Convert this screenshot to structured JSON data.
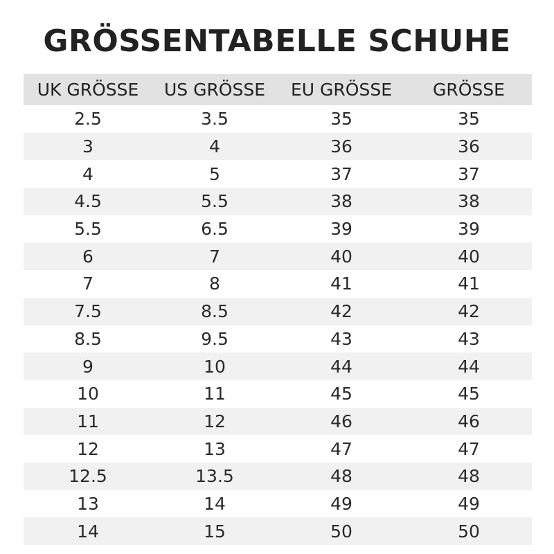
{
  "title": "GRÖSSENTABELLE SCHUHE",
  "table": {
    "headers": [
      "UK GRÖSSE",
      "US GRÖSSE",
      "EU GRÖSSE",
      "GRÖSSE"
    ],
    "rows": [
      [
        "2.5",
        "3.5",
        "35",
        "35"
      ],
      [
        "3",
        "4",
        "36",
        "36"
      ],
      [
        "4",
        "5",
        "37",
        "37"
      ],
      [
        "4.5",
        "5.5",
        "38",
        "38"
      ],
      [
        "5.5",
        "6.5",
        "39",
        "39"
      ],
      [
        "6",
        "7",
        "40",
        "40"
      ],
      [
        "7",
        "8",
        "41",
        "41"
      ],
      [
        "7.5",
        "8.5",
        "42",
        "42"
      ],
      [
        "8.5",
        "9.5",
        "43",
        "43"
      ],
      [
        "9",
        "10",
        "44",
        "44"
      ],
      [
        "10",
        "11",
        "45",
        "45"
      ],
      [
        "11",
        "12",
        "46",
        "46"
      ],
      [
        "12",
        "13",
        "47",
        "47"
      ],
      [
        "12.5",
        "13.5",
        "48",
        "48"
      ],
      [
        "13",
        "14",
        "49",
        "49"
      ],
      [
        "14",
        "15",
        "50",
        "50"
      ]
    ]
  },
  "colors": {
    "header_background": "#e2e2e2",
    "stripe_background": "#f1f1f1",
    "text": "#222222"
  }
}
